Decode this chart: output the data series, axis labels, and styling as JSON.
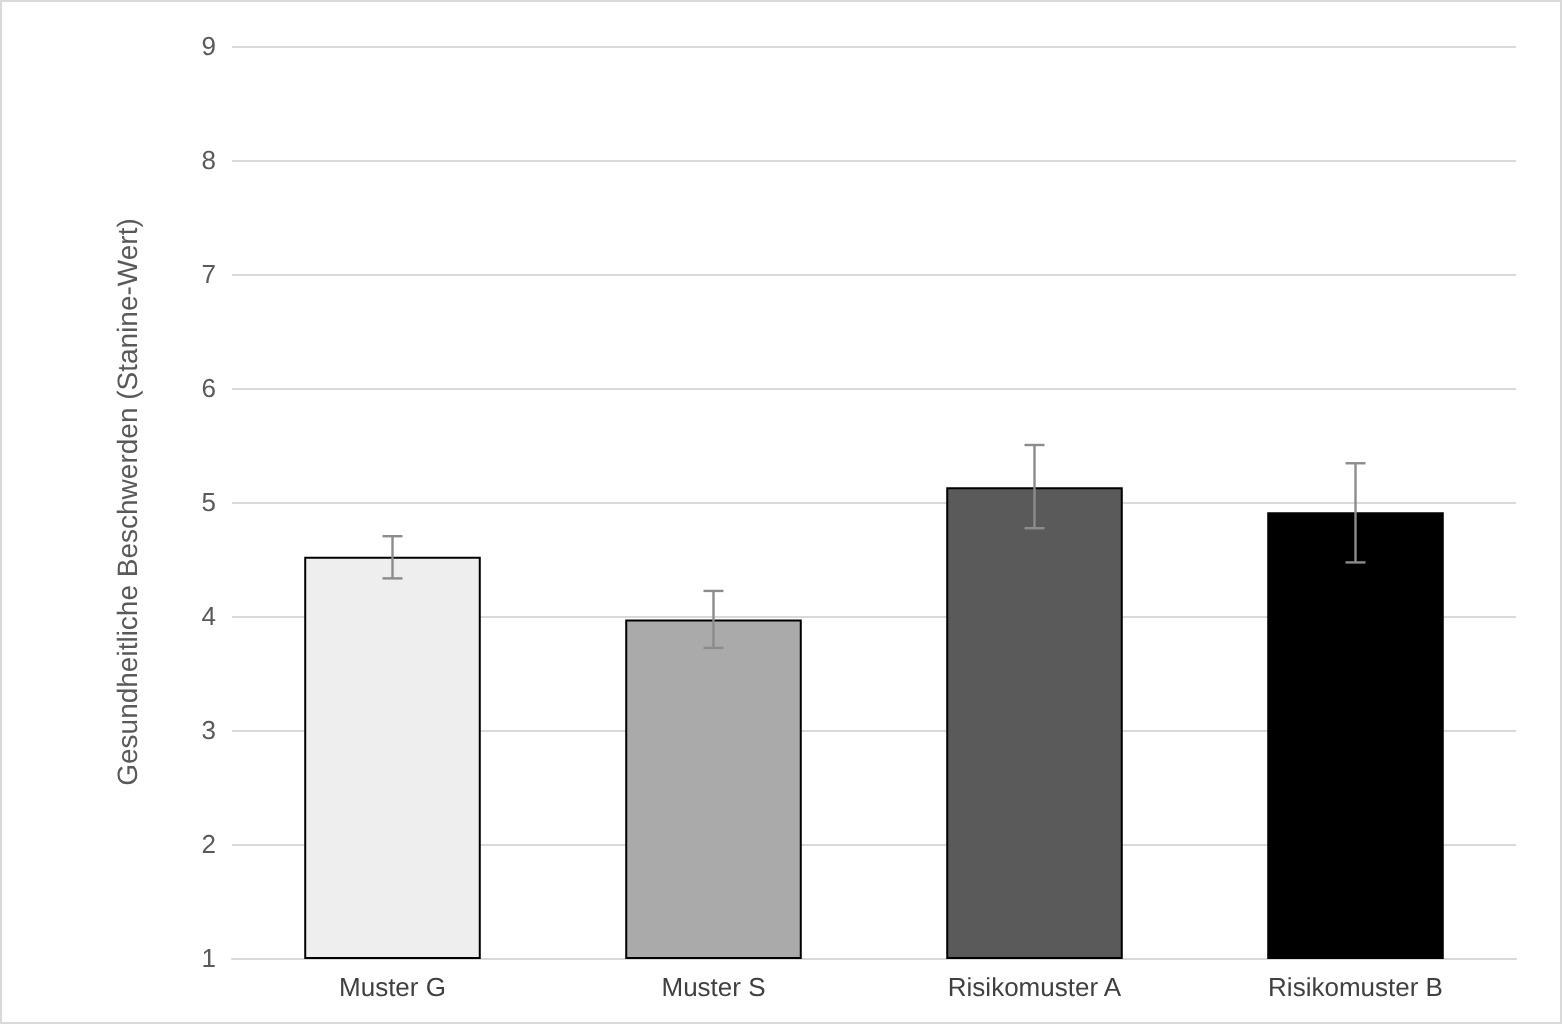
{
  "chart_data": {
    "type": "bar",
    "ylabel": "Gesundheitliche Beschwerden (Stanine-Wert)",
    "categories": [
      "Muster G",
      "Muster S",
      "Risikomuster A",
      "Risikomuster B"
    ],
    "values": [
      4.52,
      3.97,
      5.13,
      4.91
    ],
    "colors": [
      "#eeeeee",
      "#aaaaaa",
      "#5a5a5a",
      "#000000"
    ],
    "errors": [
      [
        4.33,
        4.7
      ],
      [
        3.72,
        4.22
      ],
      [
        4.77,
        5.5
      ],
      [
        4.47,
        5.34
      ]
    ],
    "ylim": [
      1,
      9
    ],
    "yticks": [
      1,
      2,
      3,
      4,
      5,
      6,
      7,
      8,
      9
    ],
    "grid": "y"
  }
}
